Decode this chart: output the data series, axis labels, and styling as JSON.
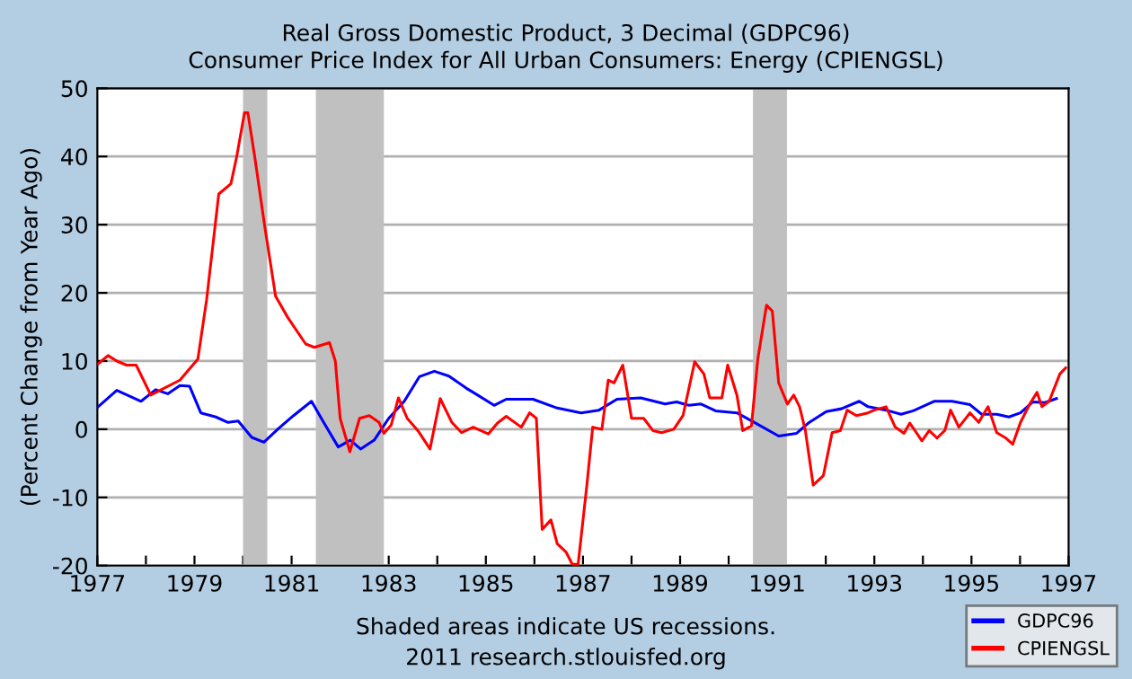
{
  "chart_data": {
    "type": "line",
    "title": "Real Gross Domestic Product, 3 Decimal (GDPC96)",
    "subtitle": "Consumer Price Index for All Urban Consumers: Energy (CPIENGSL)",
    "ylabel": "(Percent Change from Year Ago)",
    "annotations": [
      "Shaded areas indicate US recessions.",
      "2011 research.stlouisfed.org"
    ],
    "series": [
      {
        "name": "GDPC96",
        "color": "#0000ff",
        "x": [
          1977.0,
          1977.4,
          1977.9,
          1978.2,
          1978.45,
          1978.7,
          1978.9,
          1979.13,
          1979.44,
          1979.69,
          1979.9,
          1980.18,
          1980.43,
          1980.73,
          1981.04,
          1981.41,
          1981.66,
          1981.96,
          1982.21,
          1982.42,
          1982.7,
          1983.0,
          1983.32,
          1983.63,
          1983.94,
          1984.24,
          1984.6,
          1984.74,
          1985.17,
          1985.42,
          1985.97,
          1986.47,
          1986.96,
          1987.33,
          1987.7,
          1988.19,
          1988.69,
          1988.93,
          1989.18,
          1989.43,
          1989.73,
          1990.17,
          1990.53,
          1991.03,
          1991.4,
          1991.64,
          1992.01,
          1992.32,
          1992.69,
          1992.87,
          1993.24,
          1993.55,
          1993.8,
          1994.23,
          1994.6,
          1994.97,
          1995.21,
          1995.52,
          1995.77,
          1996.01,
          1996.26,
          1996.51,
          1996.75
        ],
        "values": [
          3.2,
          5.7,
          4.1,
          5.8,
          5.2,
          6.4,
          6.3,
          2.4,
          1.8,
          1.0,
          1.2,
          -1.2,
          -1.9,
          0.1,
          2.0,
          4.1,
          1.0,
          -2.6,
          -1.6,
          -2.9,
          -1.6,
          1.6,
          4.1,
          7.7,
          8.5,
          7.8,
          6.0,
          5.4,
          3.5,
          4.4,
          4.4,
          3.1,
          2.4,
          2.8,
          4.4,
          4.6,
          3.7,
          4.0,
          3.5,
          3.7,
          2.7,
          2.4,
          1.0,
          -1.0,
          -0.6,
          0.9,
          2.6,
          3.0,
          4.1,
          3.3,
          2.8,
          2.2,
          2.7,
          4.1,
          4.1,
          3.6,
          2.2,
          2.2,
          1.8,
          2.4,
          4.0,
          3.9,
          4.5
        ]
      },
      {
        "name": "CPIENGSL",
        "color": "#ff0000",
        "x": [
          1977.0,
          1977.22,
          1977.4,
          1977.6,
          1977.8,
          1978.1,
          1978.7,
          1979.07,
          1979.25,
          1979.5,
          1979.75,
          1979.87,
          1980.03,
          1980.1,
          1980.24,
          1980.45,
          1980.67,
          1980.92,
          1981.29,
          1981.47,
          1981.78,
          1981.9,
          1982.0,
          1982.2,
          1982.4,
          1982.6,
          1982.8,
          1982.9,
          1983.05,
          1983.2,
          1983.38,
          1983.6,
          1983.85,
          1984.06,
          1984.3,
          1984.5,
          1984.74,
          1985.05,
          1985.24,
          1985.42,
          1985.73,
          1985.9,
          1986.04,
          1986.16,
          1986.34,
          1986.47,
          1986.65,
          1986.78,
          1986.9,
          1987.08,
          1987.2,
          1987.39,
          1987.52,
          1987.64,
          1987.82,
          1988.0,
          1988.25,
          1988.44,
          1988.62,
          1988.87,
          1989.06,
          1989.3,
          1989.49,
          1989.61,
          1989.86,
          1989.98,
          1990.17,
          1990.29,
          1990.47,
          1990.6,
          1990.78,
          1990.9,
          1991.03,
          1991.21,
          1991.34,
          1991.46,
          1991.58,
          1991.74,
          1991.95,
          1992.13,
          1992.3,
          1992.44,
          1992.63,
          1992.87,
          1993.0,
          1993.24,
          1993.43,
          1993.61,
          1993.73,
          1993.98,
          1994.13,
          1994.29,
          1994.45,
          1994.57,
          1994.74,
          1994.97,
          1995.15,
          1995.34,
          1995.52,
          1995.71,
          1995.85,
          1996.01,
          1996.2,
          1996.35,
          1996.45,
          1996.6,
          1996.82,
          1996.94
        ],
        "values": [
          9.5,
          10.8,
          10.0,
          9.4,
          9.4,
          5.0,
          7.2,
          10.3,
          19.0,
          34.5,
          36.0,
          40.0,
          46.4,
          46.4,
          40.0,
          29.6,
          19.5,
          16.4,
          12.5,
          12.0,
          12.7,
          10.0,
          1.6,
          -3.3,
          1.6,
          2.0,
          1.0,
          -0.6,
          0.6,
          4.6,
          1.6,
          -0.2,
          -2.9,
          4.5,
          1.0,
          -0.5,
          0.3,
          -0.7,
          0.9,
          1.9,
          0.3,
          2.4,
          1.6,
          -14.7,
          -13.3,
          -16.8,
          -18.0,
          -19.8,
          -19.8,
          -8.2,
          0.3,
          0.0,
          7.2,
          6.8,
          9.4,
          1.6,
          1.6,
          -0.2,
          -0.5,
          0.0,
          2.0,
          9.9,
          8.1,
          4.6,
          4.6,
          9.4,
          5.0,
          -0.2,
          0.5,
          10.3,
          18.2,
          17.3,
          6.8,
          3.7,
          5.0,
          3.3,
          -0.2,
          -8.2,
          -6.8,
          -0.5,
          -0.2,
          2.8,
          2.0,
          2.4,
          2.8,
          3.3,
          0.3,
          -0.6,
          0.9,
          -1.7,
          -0.2,
          -1.3,
          -0.2,
          2.8,
          0.3,
          2.4,
          1.0,
          3.3,
          -0.5,
          -1.3,
          -2.2,
          1.0,
          3.7,
          5.4,
          3.3,
          4.1,
          8.1,
          9.0
        ]
      }
    ],
    "xlim": [
      1977,
      1997
    ],
    "xticks": [
      1977,
      {
        "value": 1978,
        "label": null
      },
      1979,
      {
        "value": 1980,
        "label": null
      },
      1981,
      {
        "value": 1982,
        "label": null
      },
      1983,
      {
        "value": 1984,
        "label": null
      },
      1985,
      {
        "value": 1986,
        "label": null
      },
      1987,
      {
        "value": 1988,
        "label": null
      },
      1989,
      {
        "value": 1990,
        "label": null
      },
      1991,
      {
        "value": 1992,
        "label": null
      },
      1993,
      {
        "value": 1994,
        "label": null
      },
      1995,
      {
        "value": 1996,
        "label": null
      },
      1997
    ],
    "ylim": [
      -20,
      50
    ],
    "yticks": [
      -20,
      -10,
      0,
      10,
      20,
      30,
      40,
      50
    ],
    "bands": [
      {
        "axis": "x",
        "from": 1980.0,
        "to": 1980.5,
        "color": "#c0c0c0"
      },
      {
        "axis": "x",
        "from": 1981.5,
        "to": 1982.9,
        "color": "#c0c0c0"
      },
      {
        "axis": "x",
        "from": 1990.5,
        "to": 1991.2,
        "color": "#c0c0c0"
      }
    ],
    "grid": "y",
    "legend": "bottom right"
  }
}
